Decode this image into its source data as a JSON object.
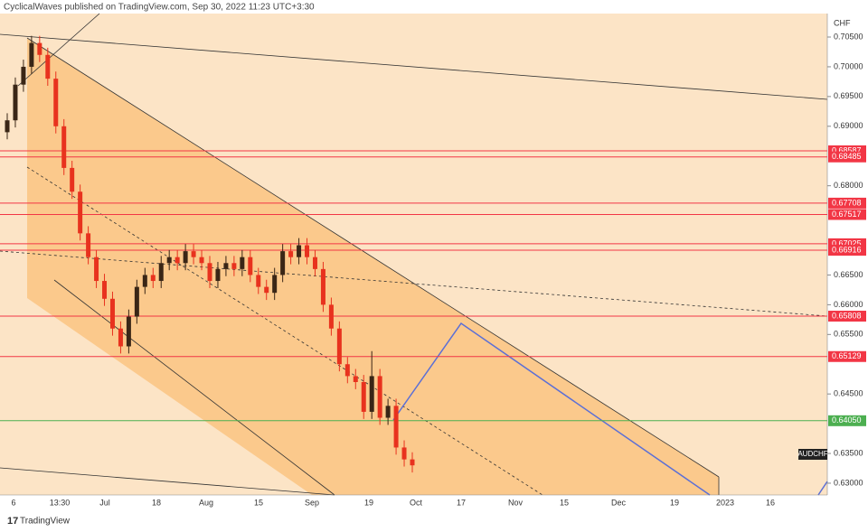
{
  "header": {
    "publisher": "CyclicalWaves published on TradingView.com, Sep 30, 2022 11:23 UTC+3:30",
    "currency": "CHF",
    "symbol": "AUDCHF",
    "brand": "TradingView"
  },
  "chart_data": {
    "type": "candlestick",
    "ylim": [
      0.62802,
      0.70895
    ],
    "yticks": [
      {
        "value": 0.705,
        "label": "0.70500"
      },
      {
        "value": 0.7,
        "label": "0.70000"
      },
      {
        "value": 0.695,
        "label": "0.69500"
      },
      {
        "value": 0.69,
        "label": "0.69000"
      },
      {
        "value": 0.68,
        "label": "0.68000"
      },
      {
        "value": 0.665,
        "label": "0.66500"
      },
      {
        "value": 0.66,
        "label": "0.66000"
      },
      {
        "value": 0.655,
        "label": "0.65500"
      },
      {
        "value": 0.645,
        "label": "0.64500"
      },
      {
        "value": 0.635,
        "label": "0.63500"
      },
      {
        "value": 0.63,
        "label": "0.63000"
      }
    ],
    "xtick_labels": [
      "6",
      "13:30",
      "Jul",
      "18",
      "Aug",
      "15",
      "Sep",
      "19",
      "Oct",
      "17",
      "Nov",
      "15",
      "Dec",
      "19",
      "2023",
      "16"
    ],
    "up_color": "#3a2616",
    "down_color": "#e8321e",
    "open": [
      0.689,
      0.691,
      0.697,
      0.7,
      0.704,
      0.702,
      0.698,
      0.69,
      0.683,
      0.679,
      0.672,
      0.668,
      0.664,
      0.661,
      0.656,
      0.653,
      0.658,
      0.663,
      0.665,
      0.664,
      0.667,
      0.668,
      0.667,
      0.669,
      0.668,
      0.667,
      0.664,
      0.666,
      0.667,
      0.666,
      0.668,
      0.665,
      0.663,
      0.662,
      0.665,
      0.669,
      0.668,
      0.67,
      0.668,
      0.666,
      0.66,
      0.656,
      0.65,
      0.648,
      0.647,
      0.642,
      0.648,
      0.641,
      0.643,
      0.636,
      0.634
    ],
    "high": [
      0.6922,
      0.6982,
      0.7012,
      0.7052,
      0.7052,
      0.7032,
      0.6992,
      0.6912,
      0.6842,
      0.6802,
      0.6732,
      0.6692,
      0.6652,
      0.6622,
      0.6572,
      0.6592,
      0.6642,
      0.6662,
      0.6662,
      0.6682,
      0.6692,
      0.6692,
      0.6702,
      0.6702,
      0.6692,
      0.6682,
      0.6672,
      0.6682,
      0.6682,
      0.6692,
      0.6692,
      0.6662,
      0.6642,
      0.6662,
      0.6702,
      0.6702,
      0.6712,
      0.6712,
      0.6692,
      0.6672,
      0.6612,
      0.6572,
      0.6512,
      0.6492,
      0.6482,
      0.6522,
      0.6492,
      0.6442,
      0.6442,
      0.6372,
      0.6352
    ],
    "low": [
      0.6878,
      0.6898,
      0.6958,
      0.6988,
      0.7008,
      0.6968,
      0.6888,
      0.6818,
      0.6778,
      0.6708,
      0.6668,
      0.6628,
      0.6598,
      0.6548,
      0.6518,
      0.6518,
      0.6568,
      0.6618,
      0.6628,
      0.6628,
      0.6658,
      0.6658,
      0.6658,
      0.6668,
      0.6658,
      0.6628,
      0.6628,
      0.6648,
      0.6648,
      0.6648,
      0.6638,
      0.6618,
      0.6608,
      0.6608,
      0.6638,
      0.6668,
      0.6668,
      0.6668,
      0.6648,
      0.6588,
      0.6548,
      0.6488,
      0.6468,
      0.6458,
      0.6408,
      0.6408,
      0.6398,
      0.6398,
      0.6348,
      0.6328,
      0.6318
    ],
    "close": [
      0.691,
      0.697,
      0.7,
      0.704,
      0.702,
      0.698,
      0.69,
      0.683,
      0.679,
      0.672,
      0.668,
      0.664,
      0.661,
      0.656,
      0.653,
      0.658,
      0.663,
      0.665,
      0.664,
      0.667,
      0.668,
      0.667,
      0.669,
      0.668,
      0.667,
      0.664,
      0.666,
      0.667,
      0.666,
      0.668,
      0.665,
      0.663,
      0.662,
      0.665,
      0.669,
      0.668,
      0.67,
      0.668,
      0.666,
      0.66,
      0.656,
      0.65,
      0.648,
      0.647,
      0.642,
      0.648,
      0.641,
      0.643,
      0.636,
      0.634,
      0.633
    ],
    "levels": [
      {
        "value": 0.68587,
        "label": "0.68587",
        "color": "#f23645"
      },
      {
        "value": 0.68485,
        "label": "0.68485",
        "color": "#f23645"
      },
      {
        "value": 0.67708,
        "label": "0.67708",
        "color": "#f23645"
      },
      {
        "value": 0.67517,
        "label": "0.67517",
        "color": "#f23645"
      },
      {
        "value": 0.67025,
        "label": "0.67025",
        "color": "#f23645"
      },
      {
        "value": 0.66916,
        "label": "0.66916",
        "color": "#f23645"
      },
      {
        "value": 0.65808,
        "label": "0.65808",
        "color": "#f23645"
      },
      {
        "value": 0.65129,
        "label": "0.65129",
        "color": "#f23645"
      },
      {
        "value": 0.6405,
        "label": "0.64050",
        "color": "#4caf50"
      }
    ]
  }
}
